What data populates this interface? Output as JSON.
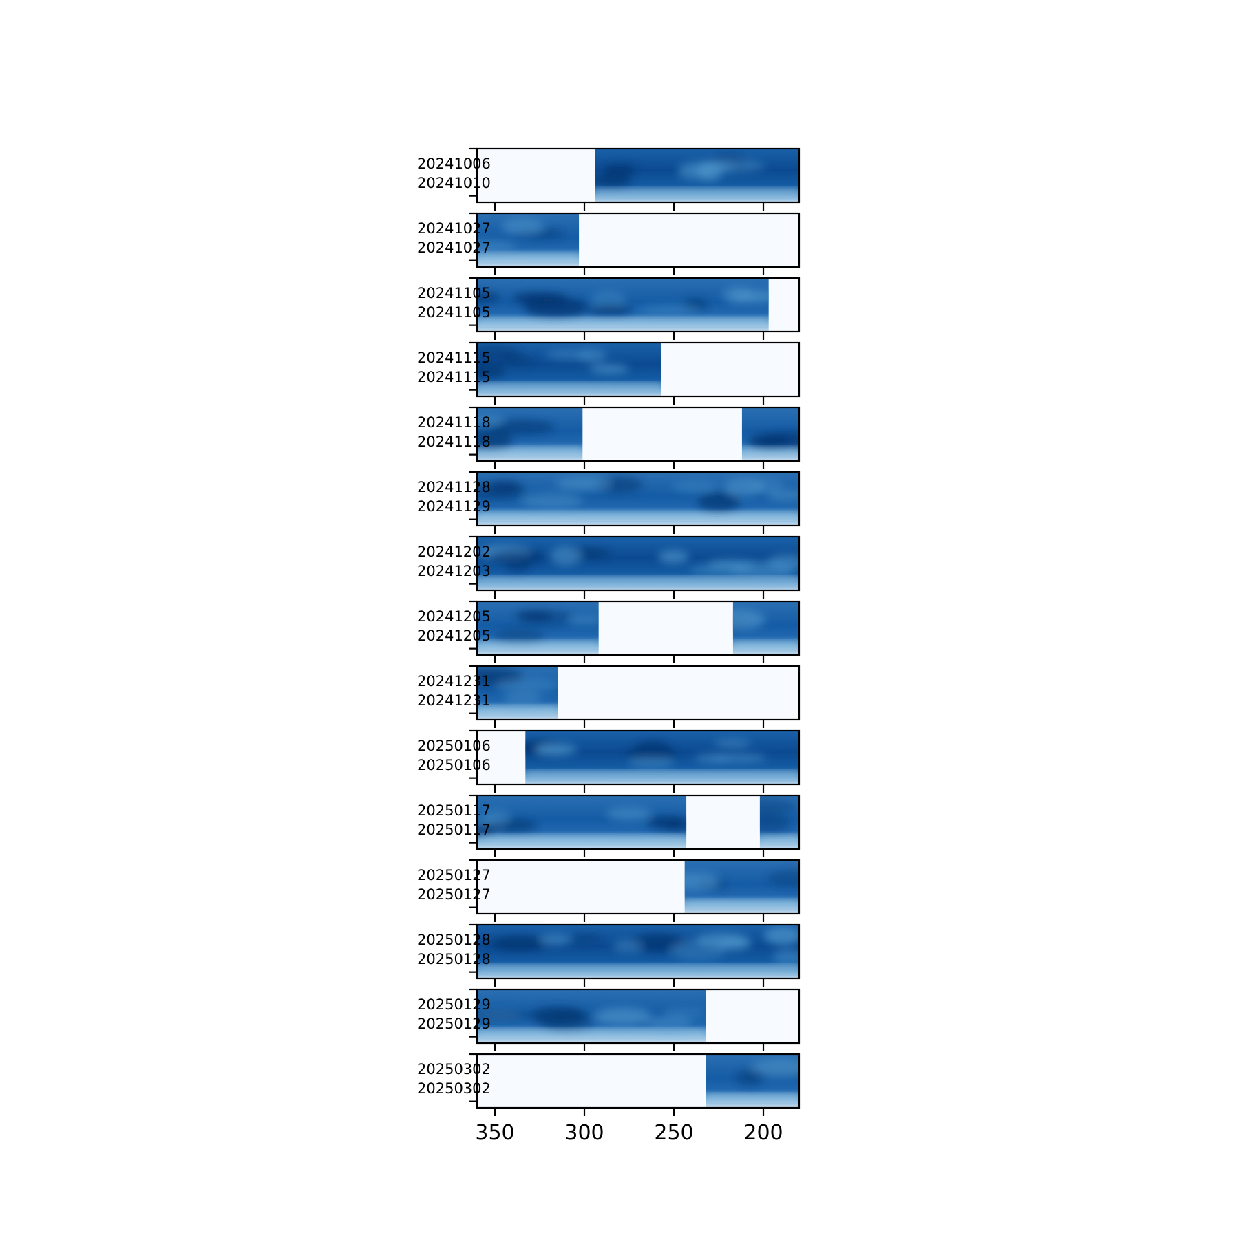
{
  "chart_data": {
    "type": "heatmap",
    "colormap": "Blues",
    "x_axis": {
      "range": [
        360,
        180
      ],
      "inverted": true,
      "ticks": [
        350,
        300,
        250,
        200
      ],
      "tick_labels": [
        "350",
        "300",
        "250",
        "200"
      ],
      "label": ""
    },
    "grid": false,
    "panels": [
      {
        "top_label": "20241006",
        "bottom_label": "20241010",
        "coverage": [
          [
            294,
            180
          ]
        ]
      },
      {
        "top_label": "20241027",
        "bottom_label": "20241027",
        "coverage": [
          [
            360,
            303
          ]
        ]
      },
      {
        "top_label": "20241105",
        "bottom_label": "20241105",
        "coverage": [
          [
            360,
            197
          ]
        ]
      },
      {
        "top_label": "20241115",
        "bottom_label": "20241115",
        "coverage": [
          [
            360,
            257
          ]
        ]
      },
      {
        "top_label": "20241118",
        "bottom_label": "20241118",
        "coverage": [
          [
            360,
            301
          ],
          [
            212,
            180
          ]
        ]
      },
      {
        "top_label": "20241128",
        "bottom_label": "20241129",
        "coverage": [
          [
            360,
            180
          ]
        ]
      },
      {
        "top_label": "20241202",
        "bottom_label": "20241203",
        "coverage": [
          [
            360,
            180
          ]
        ]
      },
      {
        "top_label": "20241205",
        "bottom_label": "20241205",
        "coverage": [
          [
            360,
            292
          ],
          [
            217,
            180
          ]
        ]
      },
      {
        "top_label": "20241231",
        "bottom_label": "20241231",
        "coverage": [
          [
            360,
            315
          ]
        ]
      },
      {
        "top_label": "20250106",
        "bottom_label": "20250106",
        "coverage": [
          [
            333,
            180
          ]
        ]
      },
      {
        "top_label": "20250117",
        "bottom_label": "20250117",
        "coverage": [
          [
            360,
            243
          ],
          [
            202,
            180
          ]
        ]
      },
      {
        "top_label": "20250127",
        "bottom_label": "20250127",
        "coverage": [
          [
            244,
            180
          ]
        ]
      },
      {
        "top_label": "20250128",
        "bottom_label": "20250128",
        "coverage": [
          [
            360,
            180
          ]
        ]
      },
      {
        "top_label": "20250129",
        "bottom_label": "20250129",
        "coverage": [
          [
            360,
            232
          ]
        ]
      },
      {
        "top_label": "20250302",
        "bottom_label": "20250302",
        "coverage": [
          [
            232,
            180
          ]
        ]
      }
    ]
  }
}
